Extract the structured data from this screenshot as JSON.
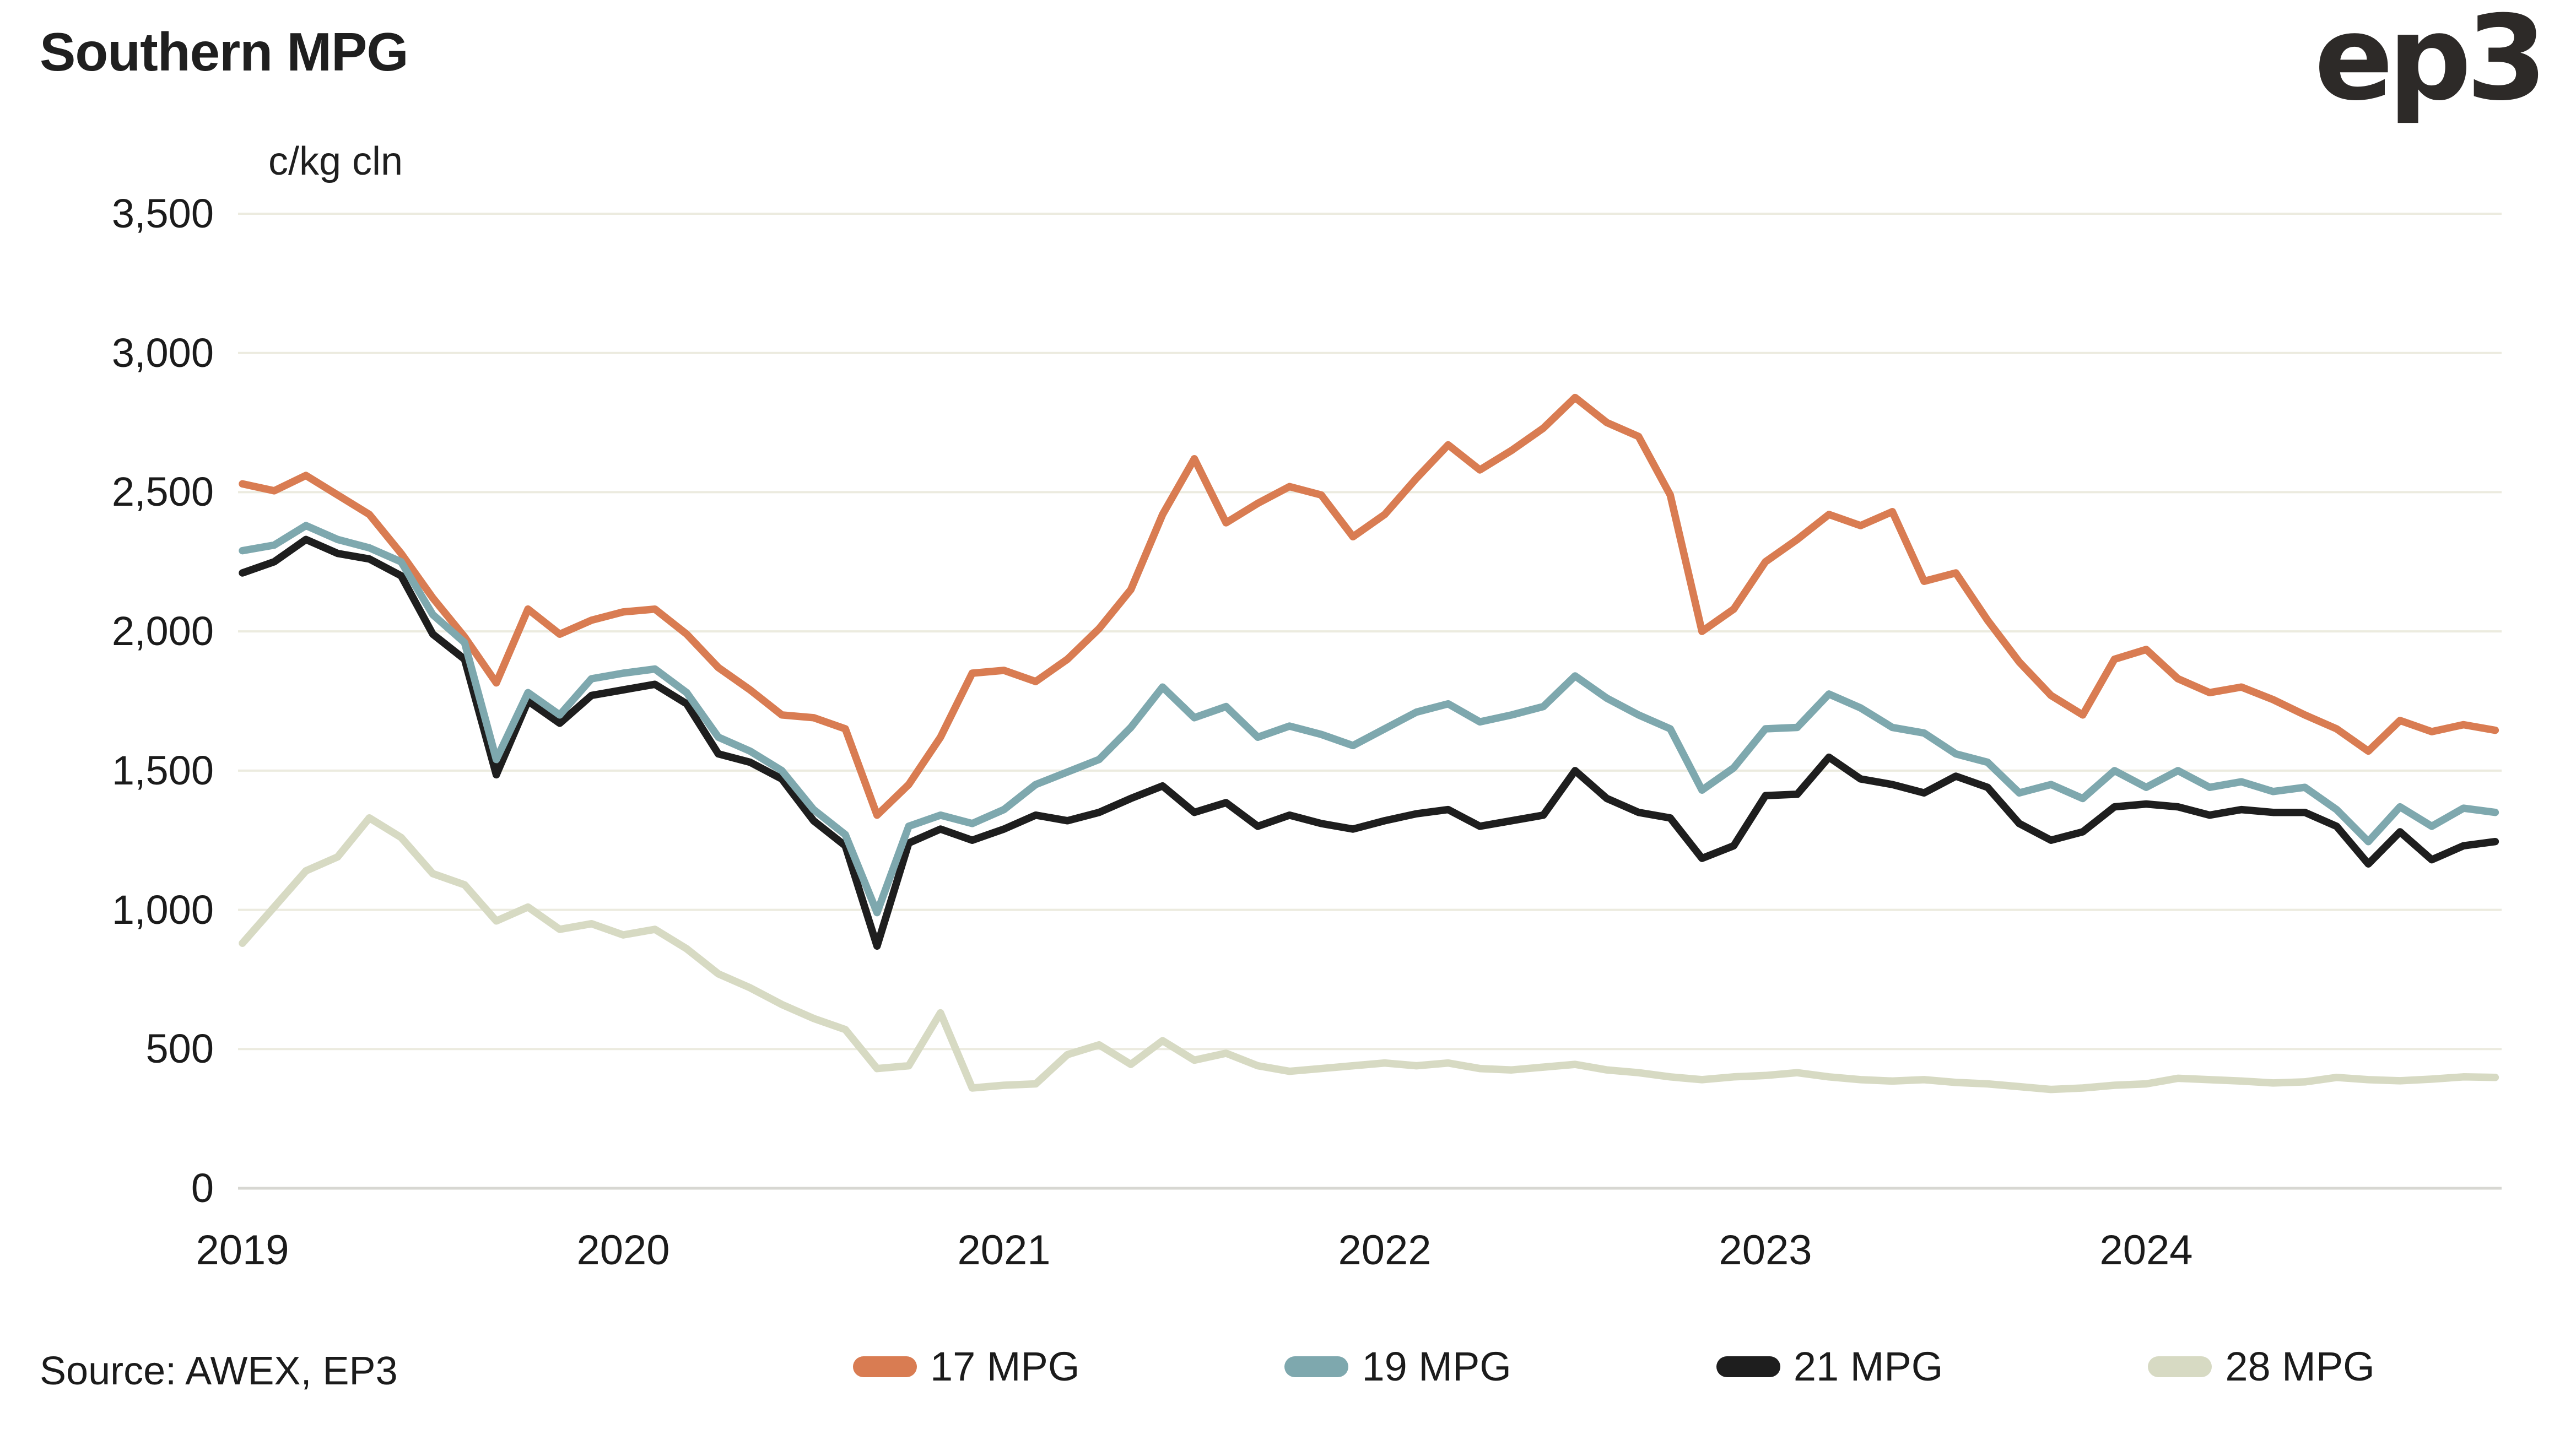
{
  "meta": {
    "title": "Southern MPG",
    "logo_text": "ep3",
    "source_note": "Source: AWEX, EP3"
  },
  "colors": {
    "background": "#ffffff",
    "text": "#1b1b1b",
    "gridline": "#ecebdf",
    "zero_line": "#d7d7d2",
    "series_17": "#d97c52",
    "series_19": "#7ea8ae",
    "series_21": "#1e1e1e",
    "series_28": "#d7dac3"
  },
  "chart_data": {
    "type": "line",
    "title": "Southern MPG",
    "ylabel": "c/kg cln",
    "xlabel": "",
    "grid": "horizontal",
    "legend_position": "bottom",
    "ylim": [
      0,
      3500
    ],
    "y_ticks": [
      3500,
      3000,
      2500,
      2000,
      1500,
      1000,
      500,
      0
    ],
    "y_tick_labels": [
      "3,500",
      "3,000",
      "2,500",
      "2,000",
      "1,500",
      "1,000",
      "500",
      "0"
    ],
    "x_tick_labels": [
      "2019",
      "2020",
      "2021",
      "2022",
      "2023",
      "2024"
    ],
    "x_start": "2019-01",
    "x_step_months": 1,
    "x_end": "2024-12",
    "series": [
      {
        "name": "17 MPG",
        "color": "#d97c52",
        "values": [
          2530,
          2505,
          2560,
          2490,
          2420,
          2280,
          2120,
          1980,
          1815,
          2080,
          1990,
          2040,
          2070,
          2080,
          1990,
          1870,
          1790,
          1700,
          1690,
          1650,
          1340,
          1450,
          1620,
          1850,
          1860,
          1820,
          1900,
          2010,
          2150,
          2420,
          2620,
          2390,
          2460,
          2520,
          2490,
          2340,
          2420,
          2550,
          2670,
          2580,
          2650,
          2730,
          2840,
          2750,
          2700,
          2490,
          2000,
          2080,
          2250,
          2330,
          2420,
          2380,
          2430,
          2180,
          2210,
          2040,
          1890,
          1770,
          1700,
          1900,
          1935,
          1830,
          1780,
          1800,
          1755,
          1700,
          1650,
          1570,
          1680,
          1640,
          1665,
          1645
        ]
      },
      {
        "name": "19 MPG",
        "color": "#7ea8ae",
        "values": [
          2290,
          2310,
          2380,
          2330,
          2300,
          2250,
          2060,
          1960,
          1540,
          1780,
          1700,
          1830,
          1850,
          1865,
          1780,
          1620,
          1570,
          1500,
          1360,
          1270,
          990,
          1300,
          1340,
          1310,
          1360,
          1450,
          1495,
          1540,
          1655,
          1800,
          1690,
          1730,
          1620,
          1660,
          1630,
          1590,
          1650,
          1710,
          1740,
          1675,
          1700,
          1730,
          1840,
          1760,
          1700,
          1650,
          1430,
          1510,
          1650,
          1655,
          1775,
          1725,
          1655,
          1635,
          1560,
          1530,
          1420,
          1450,
          1400,
          1500,
          1440,
          1500,
          1440,
          1460,
          1425,
          1440,
          1360,
          1245,
          1370,
          1300,
          1365,
          1350
        ]
      },
      {
        "name": "21 MPG",
        "color": "#1e1e1e",
        "values": [
          2210,
          2250,
          2330,
          2280,
          2260,
          2200,
          1990,
          1900,
          1485,
          1750,
          1670,
          1770,
          1790,
          1810,
          1740,
          1560,
          1530,
          1470,
          1320,
          1230,
          870,
          1240,
          1290,
          1250,
          1290,
          1340,
          1320,
          1350,
          1400,
          1445,
          1350,
          1385,
          1300,
          1340,
          1310,
          1290,
          1320,
          1345,
          1360,
          1300,
          1320,
          1340,
          1500,
          1400,
          1350,
          1330,
          1185,
          1230,
          1410,
          1415,
          1548,
          1470,
          1450,
          1420,
          1480,
          1440,
          1310,
          1250,
          1280,
          1370,
          1380,
          1370,
          1340,
          1360,
          1350,
          1350,
          1300,
          1165,
          1280,
          1180,
          1230,
          1245
        ]
      },
      {
        "name": "28 MPG",
        "color": "#d7dac3",
        "values": [
          880,
          1010,
          1140,
          1190,
          1330,
          1260,
          1130,
          1090,
          960,
          1010,
          930,
          950,
          910,
          930,
          860,
          770,
          720,
          660,
          610,
          570,
          430,
          440,
          630,
          360,
          370,
          375,
          480,
          515,
          445,
          530,
          460,
          485,
          440,
          420,
          430,
          440,
          450,
          440,
          450,
          430,
          425,
          435,
          445,
          425,
          415,
          400,
          390,
          400,
          405,
          415,
          400,
          390,
          385,
          390,
          380,
          375,
          365,
          355,
          360,
          370,
          375,
          395,
          390,
          385,
          378,
          382,
          398,
          390,
          386,
          392,
          400,
          398
        ]
      }
    ]
  }
}
